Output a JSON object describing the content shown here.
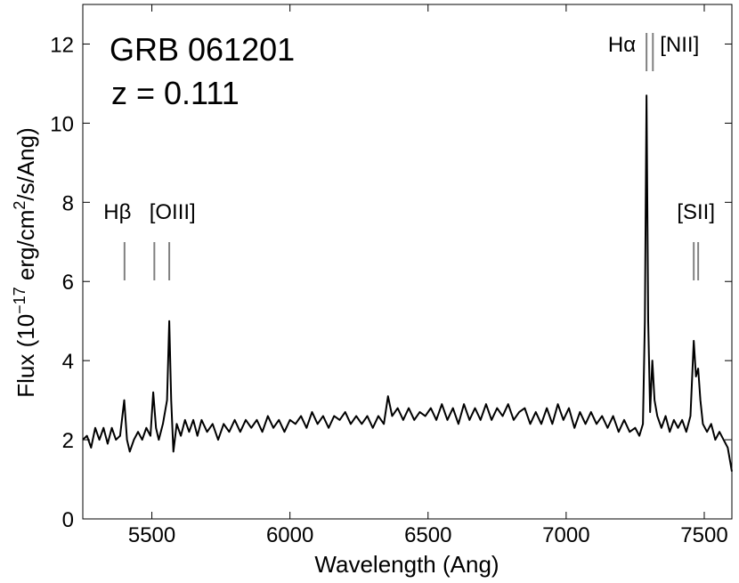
{
  "chart_data": {
    "type": "line",
    "annotations": [
      "GRB 061201",
      "z = 0.111"
    ],
    "xlabel": "Wavelength  (Ang)",
    "ylabel_parts": [
      {
        "text": "Flux  (10",
        "sup": false
      },
      {
        "text": "−17",
        "sup": true
      },
      {
        "text": " erg/cm",
        "sup": false
      },
      {
        "text": "2",
        "sup": true
      },
      {
        "text": "/s/Ang)",
        "sup": false
      }
    ],
    "color": "#000000",
    "xlim": [
      5250,
      7600
    ],
    "ylim": [
      0,
      13
    ],
    "xticks": [
      5500,
      6000,
      6500,
      7000,
      7500
    ],
    "yticks": [
      0,
      2,
      4,
      6,
      8,
      10,
      12
    ],
    "lines": [
      {
        "label": "Hβ",
        "wavelengths": [
          5401
        ]
      },
      {
        "label": "[OIII]",
        "wavelengths": [
          5509,
          5563
        ]
      },
      {
        "label": "Hα",
        "wavelengths": [
          7291
        ]
      },
      {
        "label": "[NII]",
        "wavelengths": [
          7314
        ]
      },
      {
        "label": "[SII]",
        "wavelengths": [
          7462,
          7478
        ]
      }
    ],
    "line_marker_color": "#808080",
    "x": [
      5250,
      5265,
      5280,
      5295,
      5310,
      5325,
      5340,
      5355,
      5370,
      5385,
      5400,
      5410,
      5420,
      5435,
      5450,
      5465,
      5480,
      5495,
      5505,
      5515,
      5525,
      5540,
      5555,
      5563,
      5570,
      5578,
      5590,
      5605,
      5620,
      5635,
      5650,
      5665,
      5680,
      5700,
      5720,
      5740,
      5760,
      5780,
      5800,
      5820,
      5840,
      5860,
      5880,
      5900,
      5920,
      5940,
      5960,
      5980,
      6000,
      6020,
      6040,
      6060,
      6080,
      6100,
      6120,
      6140,
      6160,
      6180,
      6200,
      6220,
      6240,
      6260,
      6280,
      6300,
      6320,
      6340,
      6355,
      6370,
      6390,
      6410,
      6430,
      6450,
      6470,
      6490,
      6510,
      6530,
      6550,
      6570,
      6590,
      6610,
      6630,
      6650,
      6670,
      6690,
      6710,
      6730,
      6750,
      6770,
      6790,
      6810,
      6830,
      6850,
      6870,
      6890,
      6910,
      6930,
      6950,
      6970,
      6990,
      7010,
      7030,
      7050,
      7070,
      7090,
      7110,
      7130,
      7150,
      7170,
      7190,
      7210,
      7230,
      7250,
      7265,
      7278,
      7285,
      7291,
      7297,
      7304,
      7312,
      7320,
      7330,
      7345,
      7360,
      7375,
      7390,
      7405,
      7420,
      7435,
      7450,
      7462,
      7470,
      7478,
      7486,
      7495,
      7510,
      7525,
      7540,
      7555,
      7570,
      7585,
      7600
    ],
    "values": [
      2.0,
      2.1,
      1.8,
      2.3,
      2.0,
      2.3,
      1.9,
      2.3,
      2.0,
      2.1,
      3.0,
      2.0,
      1.7,
      2.0,
      2.2,
      2.0,
      2.3,
      2.1,
      3.2,
      2.3,
      2.0,
      2.4,
      3.0,
      5.0,
      3.0,
      1.7,
      2.4,
      2.1,
      2.5,
      2.2,
      2.5,
      2.1,
      2.5,
      2.2,
      2.4,
      2.0,
      2.4,
      2.2,
      2.5,
      2.2,
      2.5,
      2.3,
      2.5,
      2.2,
      2.6,
      2.3,
      2.5,
      2.2,
      2.5,
      2.4,
      2.6,
      2.3,
      2.7,
      2.4,
      2.6,
      2.3,
      2.6,
      2.5,
      2.7,
      2.4,
      2.6,
      2.4,
      2.6,
      2.3,
      2.6,
      2.4,
      3.1,
      2.6,
      2.8,
      2.5,
      2.8,
      2.5,
      2.7,
      2.6,
      2.8,
      2.5,
      2.9,
      2.5,
      2.8,
      2.4,
      2.9,
      2.5,
      2.8,
      2.5,
      2.9,
      2.5,
      2.8,
      2.6,
      2.9,
      2.5,
      2.7,
      2.8,
      2.4,
      2.7,
      2.4,
      2.8,
      2.4,
      2.9,
      2.5,
      2.8,
      2.3,
      2.7,
      2.4,
      2.7,
      2.4,
      2.6,
      2.3,
      2.6,
      2.2,
      2.5,
      2.2,
      2.3,
      2.1,
      2.4,
      5.0,
      10.7,
      5.0,
      2.7,
      4.0,
      3.0,
      2.6,
      2.3,
      2.6,
      2.2,
      2.5,
      2.3,
      2.5,
      2.2,
      2.6,
      4.5,
      3.6,
      3.8,
      3.0,
      2.4,
      2.2,
      2.4,
      2.0,
      2.2,
      2.0,
      1.8,
      1.2
    ]
  }
}
